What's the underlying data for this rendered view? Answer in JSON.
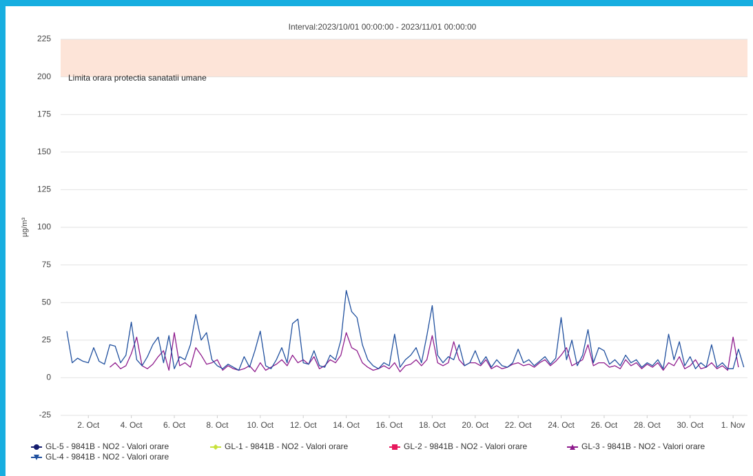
{
  "chart_data": {
    "type": "line",
    "title": "Interval:2023/10/01 00:00:00 - 2023/11/01 00:00:00",
    "y_label": "µg/m³",
    "ylim": [
      -25,
      225
    ],
    "yticks": [
      -25,
      0,
      25,
      50,
      75,
      100,
      125,
      150,
      175,
      200,
      225
    ],
    "xlim": [
      -0.29,
      31.67
    ],
    "xticks": [
      {
        "value": 1,
        "label": "2. Oct"
      },
      {
        "value": 3,
        "label": "4. Oct"
      },
      {
        "value": 5,
        "label": "6. Oct"
      },
      {
        "value": 7,
        "label": "8. Oct"
      },
      {
        "value": 9,
        "label": "10. Oct"
      },
      {
        "value": 11,
        "label": "12. Oct"
      },
      {
        "value": 13,
        "label": "14. Oct"
      },
      {
        "value": 15,
        "label": "16. Oct"
      },
      {
        "value": 17,
        "label": "18. Oct"
      },
      {
        "value": 19,
        "label": "20. Oct"
      },
      {
        "value": 21,
        "label": "22. Oct"
      },
      {
        "value": 23,
        "label": "24. Oct"
      },
      {
        "value": 25,
        "label": "26. Oct"
      },
      {
        "value": 27,
        "label": "28. Oct"
      },
      {
        "value": 29,
        "label": "30. Oct"
      },
      {
        "value": 31,
        "label": "1. Nov"
      }
    ],
    "grid": true,
    "plot_band": {
      "from": 200,
      "to": 225,
      "color": "#fde4d8",
      "label": "Limita orara protectia sanatatii umane"
    },
    "series": [
      {
        "name": "GL-5 - 9841B - NO2 - Valori orare",
        "color": "#141c6e",
        "marker": "circle",
        "x": [],
        "values": []
      },
      {
        "name": "GL-1 - 9841B - NO2 - Valori orare",
        "color": "#c8e23c",
        "marker": "diamond",
        "x": [],
        "values": []
      },
      {
        "name": "GL-2 - 9841B - NO2 - Valori orare",
        "color": "#e6175c",
        "marker": "square",
        "x": [],
        "values": []
      },
      {
        "name": "GL-3 - 9841B - NO2 - Valori orare",
        "color": "#8e1a8c",
        "marker": "triangle",
        "x": [
          2,
          2.25,
          2.5,
          2.75,
          3,
          3.25,
          3.5,
          3.75,
          4,
          4.25,
          4.5,
          4.75,
          5,
          5.25,
          5.5,
          5.75,
          6,
          6.25,
          6.5,
          6.75,
          7,
          7.25,
          7.5,
          7.75,
          8,
          8.25,
          8.5,
          8.75,
          9,
          9.25,
          9.5,
          9.75,
          10,
          10.25,
          10.5,
          10.75,
          11,
          11.25,
          11.5,
          11.75,
          12,
          12.25,
          12.5,
          12.75,
          13,
          13.25,
          13.5,
          13.75,
          14,
          14.25,
          14.5,
          14.75,
          15,
          15.25,
          15.5,
          15.75,
          16,
          16.25,
          16.5,
          16.75,
          17,
          17.25,
          17.5,
          17.75,
          18,
          18.25,
          18.5,
          18.75,
          19,
          19.25,
          19.5,
          19.75,
          20,
          20.25,
          20.5,
          20.75,
          21,
          21.25,
          21.5,
          21.75,
          22,
          22.25,
          22.5,
          22.75,
          23,
          23.25,
          23.5,
          23.75,
          24,
          24.25,
          24.5,
          24.75,
          25,
          25.25,
          25.5,
          25.75,
          26,
          26.25,
          26.5,
          26.75,
          27,
          27.25,
          27.5,
          27.75,
          28,
          28.25,
          28.5,
          28.75,
          29,
          29.25,
          29.5,
          29.75,
          30,
          30.25,
          30.5,
          30.75,
          31,
          31.25
        ],
        "values": [
          7,
          10,
          6,
          8,
          16,
          27,
          8,
          6,
          9,
          14,
          18,
          5,
          30,
          8,
          10,
          7,
          20,
          15,
          9,
          10,
          12,
          5,
          8,
          6,
          5,
          6,
          8,
          4,
          10,
          5,
          7,
          9,
          12,
          8,
          15,
          10,
          12,
          9,
          14,
          6,
          8,
          12,
          10,
          15,
          30,
          20,
          18,
          10,
          7,
          5,
          6,
          8,
          6,
          10,
          4,
          8,
          9,
          12,
          8,
          12,
          28,
          10,
          8,
          10,
          24,
          12,
          8,
          10,
          10,
          8,
          12,
          6,
          8,
          6,
          7,
          9,
          10,
          8,
          9,
          7,
          10,
          12,
          8,
          11,
          15,
          20,
          8,
          10,
          12,
          22,
          8,
          10,
          10,
          7,
          8,
          6,
          12,
          8,
          10,
          6,
          9,
          7,
          10,
          5,
          10,
          8,
          14,
          6,
          8,
          12,
          6,
          7,
          10,
          6,
          8,
          5,
          27,
          7
        ]
      },
      {
        "name": "GL-4 - 9841B - NO2 - Valori orare",
        "color": "#1f4f9e",
        "marker": "triangle-down",
        "x": [
          0,
          0.25,
          0.5,
          0.75,
          1,
          1.25,
          1.5,
          1.75,
          2,
          2.25,
          2.5,
          2.75,
          3,
          3.25,
          3.5,
          3.75,
          4,
          4.25,
          4.5,
          4.75,
          5,
          5.25,
          5.5,
          5.75,
          6,
          6.25,
          6.5,
          6.75,
          7,
          7.25,
          7.5,
          7.75,
          8,
          8.25,
          8.5,
          8.75,
          9,
          9.25,
          9.5,
          9.75,
          10,
          10.25,
          10.5,
          10.75,
          11,
          11.25,
          11.5,
          11.75,
          12,
          12.25,
          12.5,
          12.75,
          13,
          13.25,
          13.5,
          13.75,
          14,
          14.25,
          14.5,
          14.75,
          15,
          15.25,
          15.5,
          15.75,
          16,
          16.25,
          16.5,
          16.75,
          17,
          17.25,
          17.5,
          17.75,
          18,
          18.25,
          18.5,
          18.75,
          19,
          19.25,
          19.5,
          19.75,
          20,
          20.25,
          20.5,
          20.75,
          21,
          21.25,
          21.5,
          21.75,
          22,
          22.25,
          22.5,
          22.75,
          23,
          23.25,
          23.5,
          23.75,
          24,
          24.25,
          24.5,
          24.75,
          25,
          25.25,
          25.5,
          25.75,
          26,
          26.25,
          26.5,
          26.75,
          27,
          27.25,
          27.5,
          27.75,
          28,
          28.25,
          28.5,
          28.75,
          29,
          29.25,
          29.5,
          29.75,
          30,
          30.25,
          30.5,
          30.75,
          31,
          31.25,
          31.5
        ],
        "values": [
          31,
          10,
          13,
          11,
          10,
          20,
          11,
          9,
          22,
          21,
          10,
          15,
          37,
          12,
          8,
          14,
          22,
          27,
          10,
          28,
          6,
          14,
          12,
          22,
          42,
          25,
          30,
          12,
          8,
          6,
          9,
          7,
          5,
          14,
          7,
          18,
          31,
          8,
          6,
          12,
          20,
          10,
          36,
          39,
          10,
          9,
          18,
          8,
          7,
          15,
          12,
          25,
          58,
          44,
          40,
          22,
          12,
          8,
          6,
          10,
          8,
          29,
          7,
          12,
          15,
          20,
          10,
          28,
          48,
          15,
          10,
          14,
          12,
          22,
          8,
          10,
          18,
          9,
          14,
          7,
          12,
          8,
          7,
          10,
          19,
          10,
          12,
          8,
          11,
          14,
          9,
          13,
          40,
          12,
          25,
          8,
          15,
          32,
          10,
          20,
          18,
          9,
          12,
          8,
          15,
          10,
          12,
          7,
          10,
          8,
          12,
          6,
          29,
          12,
          24,
          8,
          14,
          6,
          10,
          7,
          22,
          7,
          10,
          6,
          6,
          19,
          7
        ]
      }
    ]
  }
}
